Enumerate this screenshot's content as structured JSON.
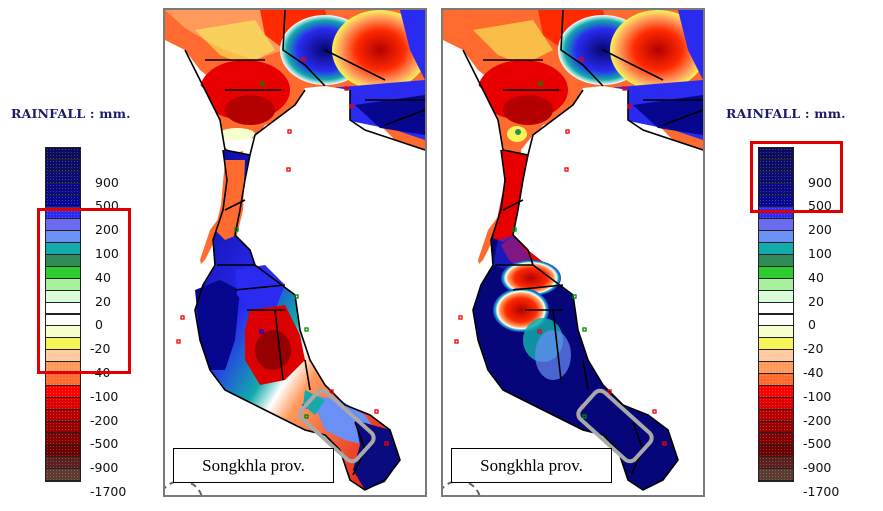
{
  "chart_data": {
    "type": "heatmap",
    "title": "RAINFALL : mm.",
    "description": "Two side-by-side rainfall anomaly maps of southern Thailand with a discrete color scale",
    "legend": {
      "title": "RAINFALL : mm.",
      "tick_labels": [
        "900",
        "500",
        "200",
        "100",
        "40",
        "20",
        "0",
        "-20",
        "-40",
        "-100",
        "-200",
        "-500",
        "-900",
        "-1700"
      ],
      "colors_top_to_bottom": [
        "#0a0a5e",
        "#0b0b66",
        "#0a0a73",
        "#090980",
        "#06068f",
        "#2a2af0",
        "#6b6bf0",
        "#6a8ff5",
        "#12aaaa",
        "#2e8b57",
        "#2fcc2f",
        "#a8f0a0",
        "#d8fdd8",
        "#ffffff",
        "#ffffff",
        "#f7ffcc",
        "#f5f55a",
        "#ffc9a0",
        "#ff9a5c",
        "#ff6a2e",
        "#ff0000",
        "#dd0000",
        "#b40000",
        "#960000",
        "#820000",
        "#6a0000",
        "#5a2020",
        "#5c3a30"
      ]
    },
    "maps": [
      {
        "label": "Songkhla prov.",
        "highlight": "Songkhla province outlined by gray rounded box",
        "dominant_in_highlight": "200 to 500 mm (blue / light blue)"
      },
      {
        "label": "Songkhla prov.",
        "highlight": "Songkhla province outlined by gray rounded box",
        "dominant_in_highlight": "over 500 mm (dark navy)"
      }
    ],
    "annotations": [
      {
        "target": "left legend",
        "range": [
          "200",
          "-40"
        ],
        "style": "red rectangle"
      },
      {
        "target": "right legend",
        "range": [
          "dark top swatches",
          "500"
        ],
        "style": "red rectangle"
      }
    ]
  },
  "legend_left": {
    "title": "RAINFALL : mm.",
    "labels": [
      "900",
      "500",
      "200",
      "100",
      "40",
      "20",
      "0",
      "-20",
      "-40",
      "-100",
      "-200",
      "-500",
      "-900",
      "-1700"
    ]
  },
  "legend_right": {
    "title": "RAINFALL : mm.",
    "labels": [
      "900",
      "500",
      "200",
      "100",
      "40",
      "20",
      "0",
      "-20",
      "-40",
      "-100",
      "-200",
      "-500",
      "-900",
      "-1700"
    ]
  },
  "map_left": {
    "label": "Songkhla prov."
  },
  "map_right": {
    "label": "Songkhla prov."
  },
  "colors": {
    "annotation_red": "#e00000",
    "highlight_gray": "#a9a9a9",
    "frame_gray": "#7a7a7a",
    "title_navy": "#1a1a6e"
  }
}
